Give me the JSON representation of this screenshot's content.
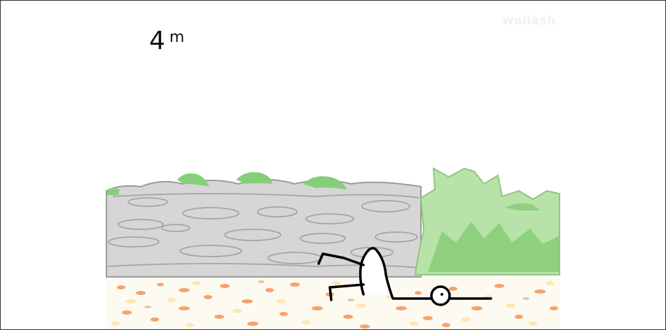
{
  "hud": {
    "distance_value": "4",
    "distance_unit": "m"
  },
  "watermark": {
    "text": "wallash"
  },
  "scene": {
    "elements": [
      "stone-wall",
      "green-bush",
      "leaf-ground",
      "stick-figure-player"
    ],
    "colors": {
      "wall_fill": "#d6d6d6",
      "wall_outline": "#9a9a9a",
      "moss": "#86cf7a",
      "bush_light": "#b7e2a8",
      "bush_dark": "#8fd07f",
      "leaf_orange": "#f6a26b",
      "leaf_yellow": "#fde7b3",
      "figure_stroke": "#000000"
    }
  }
}
